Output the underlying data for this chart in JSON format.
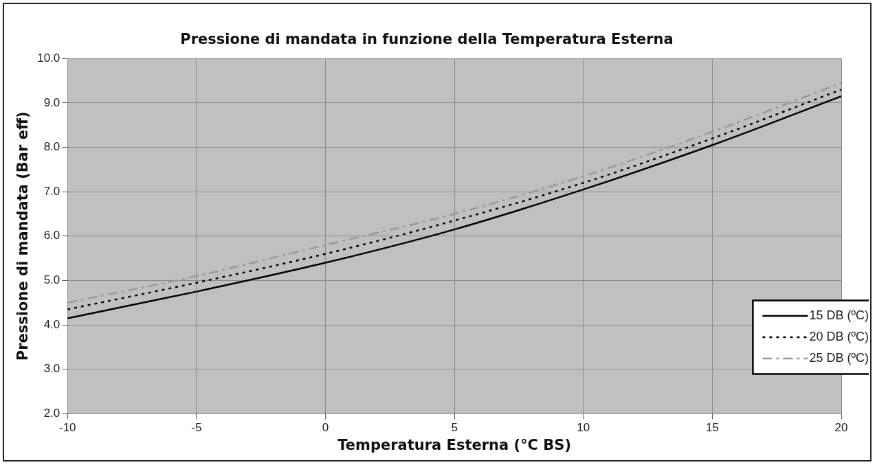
{
  "chart_data": {
    "type": "line",
    "title": "Pressione di mandata in funzione della Temperatura Esterna",
    "xlabel": "Temperatura Esterna (°C BS)",
    "ylabel": "Pressione di mandata (Bar eff)",
    "x": [
      -10,
      -5,
      0,
      5,
      10,
      15,
      20
    ],
    "series": [
      {
        "name": "15 DB (ºC)",
        "color": "#000000",
        "line_style": "solid",
        "values": [
          4.15,
          4.75,
          5.4,
          6.15,
          7.05,
          8.05,
          9.15
        ]
      },
      {
        "name": "20 DB (ºC)",
        "color": "#000000",
        "line_style": "dotted",
        "values": [
          4.35,
          4.95,
          5.6,
          6.35,
          7.2,
          8.2,
          9.3
        ]
      },
      {
        "name": "25 DB (ºC)",
        "color": "#999999",
        "line_style": "dashed",
        "values": [
          4.5,
          5.1,
          5.8,
          6.5,
          7.35,
          8.35,
          9.45
        ]
      }
    ],
    "xlim": [
      -10,
      20
    ],
    "xticks": [
      -10,
      -5,
      0,
      5,
      10,
      15,
      20
    ],
    "ylim": [
      2,
      10
    ],
    "yticks": [
      {
        "value": 2,
        "label": "2.0"
      },
      {
        "value": 3,
        "label": "3.0"
      },
      {
        "value": 4,
        "label": "4.0"
      },
      {
        "value": 5,
        "label": "5.0"
      },
      {
        "value": 6,
        "label": "6.0"
      },
      {
        "value": 7,
        "label": "7.0"
      },
      {
        "value": 8,
        "label": "8.0"
      },
      {
        "value": 9,
        "label": "9.0"
      },
      {
        "value": 10,
        "label": "10.0"
      }
    ],
    "grid": true,
    "legend": "bottom right",
    "marker": "none"
  }
}
